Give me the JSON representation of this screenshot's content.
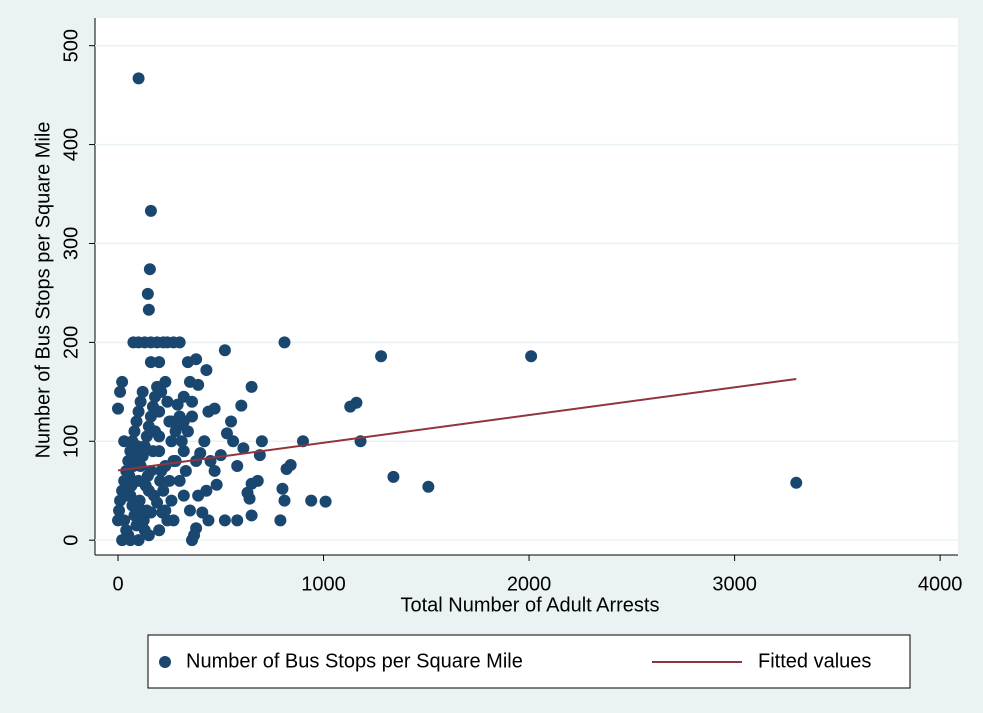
{
  "chart_data": {
    "type": "scatter",
    "x_label": "Total Number of Adult Arrests",
    "y_label": "Number of Bus Stops per Square Mile",
    "xlim": [
      -112,
      4087
    ],
    "ylim": [
      -15,
      528
    ],
    "xticks": [
      0,
      1000,
      2000,
      3000,
      4000
    ],
    "yticks": [
      0,
      100,
      200,
      300,
      400,
      500
    ],
    "grid": true,
    "series": [
      {
        "name": "Number of Bus Stops per Square Mile",
        "color": "#1a476f",
        "kind": "scatter",
        "x": [
          100,
          160,
          155,
          145,
          150,
          810,
          1280,
          2010,
          3300,
          1340,
          1510,
          1130,
          1160,
          1180,
          1010,
          940,
          900,
          840,
          820,
          790,
          800,
          810,
          650,
          650,
          650,
          700,
          680,
          690,
          600,
          520,
          550,
          560,
          530,
          580,
          580,
          520,
          610,
          630,
          640,
          440,
          470,
          430,
          380,
          390,
          340,
          300,
          270,
          240,
          220,
          190,
          160,
          130,
          100,
          75,
          200,
          160,
          320,
          290,
          360,
          400,
          420,
          450,
          480,
          470,
          500,
          430,
          410,
          440,
          380,
          370,
          360,
          350,
          320,
          300,
          280,
          260,
          250,
          240,
          230,
          210,
          200,
          180,
          170,
          160,
          150,
          140,
          130,
          120,
          110,
          100,
          90,
          80,
          70,
          60,
          50,
          40,
          30,
          20,
          10,
          5,
          0,
          0,
          10,
          20,
          30,
          40,
          50,
          60,
          70,
          80,
          90,
          100,
          110,
          120,
          130,
          140,
          150,
          160,
          170,
          180,
          190,
          200,
          210,
          220,
          230,
          240,
          250,
          260,
          270,
          280,
          300,
          310,
          320,
          330,
          340,
          350,
          360,
          380,
          390,
          270,
          200,
          150,
          100,
          60,
          20,
          30,
          45,
          55,
          65,
          75,
          85,
          95,
          105,
          115,
          125,
          135,
          145,
          160,
          175,
          190,
          205,
          215,
          230,
          260,
          290,
          320,
          200
        ],
        "values": [
          467,
          333,
          274,
          249,
          233,
          200,
          186,
          186,
          58,
          64,
          54,
          135,
          139,
          100,
          39,
          40,
          100,
          76,
          72,
          20,
          52,
          40,
          155,
          25,
          57,
          100,
          60,
          86,
          136,
          192,
          120,
          100,
          108,
          75,
          20,
          20,
          93,
          48,
          42,
          130,
          133,
          172,
          183,
          157,
          180,
          200,
          200,
          200,
          200,
          200,
          200,
          200,
          200,
          200,
          180,
          180,
          145,
          137,
          125,
          88,
          100,
          80,
          56,
          70,
          86,
          50,
          28,
          20,
          12,
          5,
          0,
          30,
          45,
          60,
          80,
          100,
          120,
          140,
          160,
          150,
          130,
          110,
          90,
          70,
          50,
          30,
          10,
          150,
          140,
          130,
          120,
          110,
          100,
          90,
          80,
          70,
          60,
          50,
          40,
          30,
          20,
          133,
          150,
          160,
          100,
          10,
          5,
          45,
          35,
          25,
          15,
          60,
          75,
          85,
          95,
          105,
          115,
          125,
          135,
          145,
          155,
          90,
          70,
          50,
          30,
          20,
          60,
          40,
          80,
          110,
          125,
          100,
          90,
          70,
          110,
          160,
          140,
          80,
          45,
          20,
          10,
          5,
          0,
          0,
          0,
          20,
          45,
          65,
          55,
          75,
          85,
          95,
          40,
          30,
          20,
          55,
          65,
          28,
          45,
          38,
          60,
          28,
          75,
          120,
          115,
          120,
          105
        ]
      },
      {
        "name": "Fitted values",
        "color": "#90353b",
        "kind": "line",
        "x": [
          0,
          3300
        ],
        "values": [
          70.5,
          163
        ]
      }
    ]
  }
}
